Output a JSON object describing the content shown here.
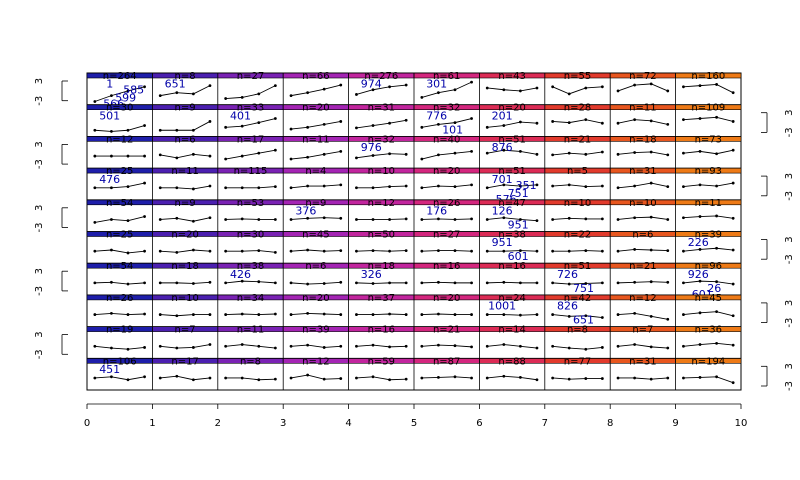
{
  "chart_data": {
    "type": "line",
    "description_layout": "trellis of 10 rows x 10 columns of mini sparkline panels",
    "x_axis": {
      "ticks": [
        "0",
        "1",
        "2",
        "3",
        "4",
        "5",
        "6",
        "7",
        "8",
        "9",
        "10"
      ],
      "range": [
        0,
        10
      ]
    },
    "panel_y_ticks": [
      "3",
      "-3"
    ],
    "strip_colors": [
      "#1e1eaa",
      "#4b1fb0",
      "#7a22b4",
      "#a424b4",
      "#c2259e",
      "#d4267e",
      "#dc2b55",
      "#e23a2c",
      "#e8561e",
      "#ee7a16"
    ],
    "rows": [
      {
        "n": [
          "n=264",
          "n=8",
          "n=27",
          "n=66",
          "n=276",
          "n=61",
          "n=43",
          "n=55",
          "n=72",
          "n=160"
        ],
        "series": [
          [
            -1.5,
            -0.5,
            0.3,
            1.0
          ],
          [
            -0.5,
            0,
            -0.2,
            1.2
          ],
          [
            -1,
            -0.8,
            -0.2,
            1.2
          ],
          [
            -0.5,
            0,
            0.6,
            1.3
          ],
          [
            -0.3,
            0.5,
            1.0,
            1.3
          ],
          [
            -0.8,
            0,
            0.5,
            1.8
          ],
          [
            0.8,
            0.5,
            0.3,
            0.8
          ],
          [
            1.0,
            -0.2,
            0.8,
            1.0
          ],
          [
            0.3,
            1.3,
            1.5,
            0.3
          ],
          [
            1.0,
            1.2,
            1.4,
            0
          ]
        ],
        "highlights": [
          {
            "col": 0,
            "text": "1"
          },
          {
            "col": 0,
            "text": "599"
          },
          {
            "col": 0,
            "text": "566"
          },
          {
            "col": 0,
            "text": "585"
          },
          {
            "col": 1,
            "text": "651"
          },
          {
            "col": 4,
            "text": "974"
          },
          {
            "col": 5,
            "text": "301"
          }
        ]
      },
      {
        "n": [
          "n=30",
          "n=9",
          "n=33",
          "n=20",
          "n=31",
          "n=32",
          "n=20",
          "n=28",
          "n=11",
          "n=109"
        ],
        "series": [
          [
            -1,
            -1.2,
            -1,
            -0.2
          ],
          [
            -1,
            -1,
            -1,
            0.5
          ],
          [
            -0.5,
            -0.3,
            0.3,
            1.0
          ],
          [
            -0.8,
            -0.5,
            0,
            0.5
          ],
          [
            -0.6,
            -0.2,
            0.2,
            0.7
          ],
          [
            -0.5,
            0,
            0.3,
            1.0
          ],
          [
            -0.5,
            -0.2,
            0.4,
            0.2
          ],
          [
            0.5,
            0.3,
            0.8,
            0.2
          ],
          [
            0.2,
            0.8,
            0.6,
            0
          ],
          [
            0.8,
            1.0,
            1.2,
            0.5
          ]
        ],
        "highlights": [
          {
            "col": 0,
            "text": "501"
          },
          {
            "col": 2,
            "text": "401"
          },
          {
            "col": 5,
            "text": "776"
          },
          {
            "col": 5,
            "text": "101"
          },
          {
            "col": 6,
            "text": "201"
          }
        ]
      },
      {
        "n": [
          "n=12",
          "n=6",
          "n=17",
          "n=11",
          "n=32",
          "n=40",
          "n=51",
          "n=21",
          "n=18",
          "n=73"
        ],
        "series": [
          [
            0,
            0,
            0,
            0
          ],
          [
            0.2,
            -0.3,
            0.3,
            0
          ],
          [
            -0.5,
            0,
            0.5,
            1.0
          ],
          [
            -0.5,
            -0.2,
            0.3,
            0.8
          ],
          [
            -0.3,
            0.1,
            0.4,
            0.3
          ],
          [
            -0.5,
            0.2,
            0.5,
            0.8
          ],
          [
            0.5,
            1.0,
            0.8,
            0.3
          ],
          [
            0.2,
            0.5,
            0.3,
            0.7
          ],
          [
            0.3,
            0.6,
            0.7,
            0.2
          ],
          [
            0.5,
            0.8,
            0.4,
            1.0
          ]
        ],
        "highlights": [
          {
            "col": 4,
            "text": "976"
          },
          {
            "col": 6,
            "text": "876"
          }
        ]
      },
      {
        "n": [
          "n=25",
          "n=11",
          "n=115",
          "n=4",
          "n=10",
          "n=20",
          "n=51",
          "n=5",
          "n=31",
          "n=93"
        ],
        "series": [
          [
            0,
            0,
            0.2,
            0.8
          ],
          [
            0,
            0,
            -0.2,
            0.3
          ],
          [
            0,
            0,
            0,
            0.2
          ],
          [
            0,
            0.3,
            0.3,
            0.5
          ],
          [
            0,
            0,
            0.2,
            0.3
          ],
          [
            0,
            0.3,
            0.2,
            0.5
          ],
          [
            0,
            0.5,
            0.3,
            0.5
          ],
          [
            0.3,
            0.5,
            0.2,
            0.3
          ],
          [
            0,
            0.3,
            0.8,
            0.2
          ],
          [
            0.2,
            0.5,
            0.3,
            0.8
          ]
        ],
        "highlights": [
          {
            "col": 0,
            "text": "476"
          },
          {
            "col": 6,
            "text": "701"
          },
          {
            "col": 6,
            "text": "751"
          },
          {
            "col": 6,
            "text": "576"
          },
          {
            "col": 6,
            "text": "351"
          }
        ]
      },
      {
        "n": [
          "n=54",
          "n=9",
          "n=53",
          "n=9",
          "n=12",
          "n=26",
          "n=47",
          "n=10",
          "n=10",
          "n=11"
        ],
        "series": [
          [
            -0.5,
            0,
            -0.2,
            0.5
          ],
          [
            0,
            0.2,
            -0.3,
            0.3
          ],
          [
            0,
            0.1,
            0,
            0
          ],
          [
            0,
            0.2,
            0.3,
            0.2
          ],
          [
            0,
            0,
            0,
            0.1
          ],
          [
            0,
            0.1,
            0,
            0.1
          ],
          [
            0,
            0.3,
            0,
            -0.2
          ],
          [
            0,
            0.2,
            0.1,
            0.1
          ],
          [
            0,
            0.3,
            0.4,
            0
          ],
          [
            0.3,
            0.5,
            0.6,
            0.2
          ]
        ],
        "highlights": [
          {
            "col": 3,
            "text": "376"
          },
          {
            "col": 5,
            "text": "176"
          },
          {
            "col": 6,
            "text": "126"
          },
          {
            "col": 6,
            "text": "951"
          }
        ]
      },
      {
        "n": [
          "n=25",
          "n=20",
          "n=30",
          "n=45",
          "n=50",
          "n=27",
          "n=38",
          "n=22",
          "n=6",
          "n=39"
        ],
        "series": [
          [
            0,
            0.2,
            -0.3,
            0
          ],
          [
            0,
            -0.2,
            0.2,
            0
          ],
          [
            0,
            0,
            0.1,
            -0.2
          ],
          [
            0,
            0.2,
            0,
            0.1
          ],
          [
            0,
            0.1,
            0,
            0.1
          ],
          [
            0,
            0.1,
            0.1,
            0
          ],
          [
            0,
            0,
            0.1,
            0
          ],
          [
            0,
            0,
            0.1,
            0
          ],
          [
            0,
            0.3,
            0.2,
            0.1
          ],
          [
            0,
            0.3,
            0.5,
            0.2
          ]
        ],
        "highlights": [
          {
            "col": 6,
            "text": "951"
          },
          {
            "col": 6,
            "text": "601"
          },
          {
            "col": 9,
            "text": "226"
          }
        ]
      },
      {
        "n": [
          "n=54",
          "n=18",
          "n=38",
          "n=6",
          "n=18",
          "n=16",
          "n=16",
          "n=51",
          "n=21",
          "n=96"
        ],
        "series": [
          [
            0,
            0.1,
            -0.2,
            0
          ],
          [
            0,
            0,
            -0.1,
            0.1
          ],
          [
            0,
            0.3,
            0.2,
            0
          ],
          [
            0,
            -0.2,
            -0.1,
            0.1
          ],
          [
            0,
            -0.1,
            0,
            0
          ],
          [
            0,
            0.1,
            0,
            0
          ],
          [
            0,
            0.1,
            0,
            0
          ],
          [
            0,
            -0.2,
            -0.1,
            0
          ],
          [
            0,
            0.1,
            0.2,
            0.1
          ],
          [
            0,
            0.3,
            0.2,
            -0.2
          ]
        ],
        "highlights": [
          {
            "col": 2,
            "text": "426"
          },
          {
            "col": 4,
            "text": "326"
          },
          {
            "col": 7,
            "text": "726"
          },
          {
            "col": 7,
            "text": "751"
          },
          {
            "col": 9,
            "text": "926"
          },
          {
            "col": 9,
            "text": "26"
          },
          {
            "col": 9,
            "text": "601"
          }
        ]
      },
      {
        "n": [
          "n=26",
          "n=10",
          "n=34",
          "n=20",
          "n=37",
          "n=20",
          "n=24",
          "n=42",
          "n=12",
          "n=45"
        ],
        "series": [
          [
            0,
            0.2,
            0,
            0.1
          ],
          [
            0,
            -0.2,
            0,
            0
          ],
          [
            0,
            0.1,
            0,
            0.1
          ],
          [
            0,
            0.2,
            0.1,
            0
          ],
          [
            0,
            0,
            0.1,
            0
          ],
          [
            0,
            0.1,
            0,
            0
          ],
          [
            0,
            0,
            -0.1,
            0
          ],
          [
            0,
            -0.3,
            -0.2,
            -0.5
          ],
          [
            0,
            0.2,
            -0.3,
            -0.8
          ],
          [
            0,
            0.3,
            0.5,
            -0.2
          ]
        ],
        "highlights": [
          {
            "col": 6,
            "text": "1001"
          },
          {
            "col": 7,
            "text": "826"
          },
          {
            "col": 7,
            "text": "651"
          }
        ]
      },
      {
        "n": [
          "n=19",
          "n=7",
          "n=11",
          "n=39",
          "n=16",
          "n=21",
          "n=14",
          "n=8",
          "n=7",
          "n=36"
        ],
        "series": [
          [
            0,
            -0.3,
            -0.5,
            -0.2
          ],
          [
            0,
            -0.3,
            -0.2,
            0.3
          ],
          [
            0,
            0.3,
            0,
            -0.3
          ],
          [
            0,
            0.2,
            -0.2,
            0
          ],
          [
            0,
            0.2,
            -0.1,
            0
          ],
          [
            0,
            0.2,
            0.1,
            -0.1
          ],
          [
            0,
            0.3,
            0,
            -0.3
          ],
          [
            0,
            -0.3,
            -0.5,
            -0.2
          ],
          [
            0,
            0.3,
            -0.1,
            -0.3
          ],
          [
            0,
            0.3,
            0.5,
            0.2
          ]
        ],
        "highlights": []
      },
      {
        "n": [
          "n=106",
          "n=17",
          "n=8",
          "n=12",
          "n=59",
          "n=87",
          "n=88",
          "n=77",
          "n=31",
          "n=194"
        ],
        "series": [
          [
            0,
            0.2,
            -0.3,
            0.2
          ],
          [
            0,
            0.3,
            -0.3,
            0
          ],
          [
            0,
            0,
            -0.3,
            -0.2
          ],
          [
            0,
            0.5,
            -0.2,
            -0.1
          ],
          [
            0,
            0.2,
            -0.3,
            -0.2
          ],
          [
            0,
            0.1,
            0.2,
            0
          ],
          [
            0,
            0.3,
            0.1,
            -0.3
          ],
          [
            0,
            -0.2,
            -0.1,
            -0.1
          ],
          [
            0,
            0,
            -0.2,
            0
          ],
          [
            0,
            0.1,
            0.2,
            -0.8
          ]
        ],
        "highlights": [
          {
            "col": 0,
            "text": "451"
          }
        ]
      }
    ]
  }
}
